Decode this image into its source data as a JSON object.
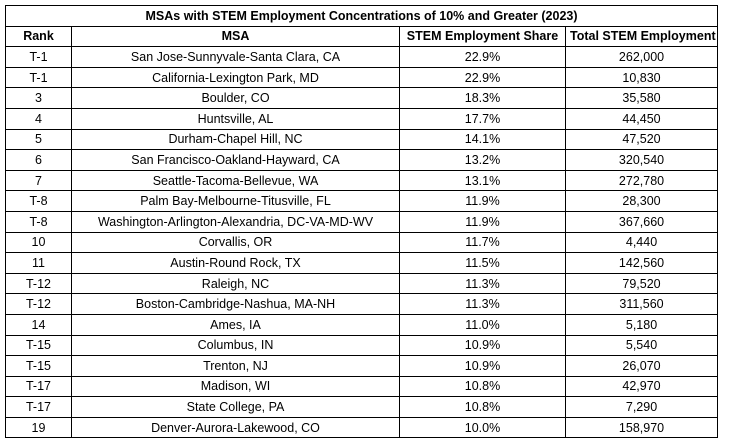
{
  "table": {
    "title": "MSAs with STEM Employment Concentrations of 10% and Greater (2023)",
    "headers": [
      "Rank",
      "MSA",
      "STEM Employment Share",
      "Total STEM Employment"
    ],
    "rows": [
      {
        "rank": "T-1",
        "msa": "San Jose-Sunnyvale-Santa Clara, CA",
        "share": "22.9%",
        "total": "262,000"
      },
      {
        "rank": "T-1",
        "msa": "California-Lexington Park, MD",
        "share": "22.9%",
        "total": "10,830"
      },
      {
        "rank": "3",
        "msa": "Boulder, CO",
        "share": "18.3%",
        "total": "35,580"
      },
      {
        "rank": "4",
        "msa": "Huntsville, AL",
        "share": "17.7%",
        "total": "44,450"
      },
      {
        "rank": "5",
        "msa": "Durham-Chapel Hill, NC",
        "share": "14.1%",
        "total": "47,520"
      },
      {
        "rank": "6",
        "msa": "San Francisco-Oakland-Hayward, CA",
        "share": "13.2%",
        "total": "320,540"
      },
      {
        "rank": "7",
        "msa": "Seattle-Tacoma-Bellevue, WA",
        "share": "13.1%",
        "total": "272,780"
      },
      {
        "rank": "T-8",
        "msa": "Palm Bay-Melbourne-Titusville, FL",
        "share": "11.9%",
        "total": "28,300"
      },
      {
        "rank": "T-8",
        "msa": "Washington-Arlington-Alexandria, DC-VA-MD-WV",
        "share": "11.9%",
        "total": "367,660"
      },
      {
        "rank": "10",
        "msa": "Corvallis, OR",
        "share": "11.7%",
        "total": "4,440"
      },
      {
        "rank": "11",
        "msa": "Austin-Round Rock, TX",
        "share": "11.5%",
        "total": "142,560"
      },
      {
        "rank": "T-12",
        "msa": "Raleigh, NC",
        "share": "11.3%",
        "total": "79,520"
      },
      {
        "rank": "T-12",
        "msa": "Boston-Cambridge-Nashua, MA-NH",
        "share": "11.3%",
        "total": "311,560"
      },
      {
        "rank": "14",
        "msa": "Ames, IA",
        "share": "11.0%",
        "total": "5,180"
      },
      {
        "rank": "T-15",
        "msa": "Columbus, IN",
        "share": "10.9%",
        "total": "5,540"
      },
      {
        "rank": "T-15",
        "msa": "Trenton, NJ",
        "share": "10.9%",
        "total": "26,070"
      },
      {
        "rank": "T-17",
        "msa": "Madison, WI",
        "share": "10.8%",
        "total": "42,970"
      },
      {
        "rank": "T-17",
        "msa": "State College, PA",
        "share": "10.8%",
        "total": "7,290"
      },
      {
        "rank": "19",
        "msa": "Denver-Aurora-Lakewood, CO",
        "share": "10.0%",
        "total": "158,970"
      }
    ]
  }
}
